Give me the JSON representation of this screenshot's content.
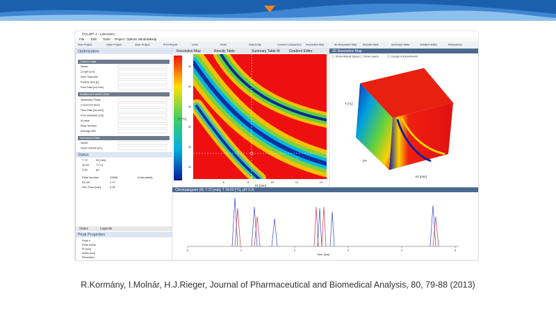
{
  "slide": {
    "citation": "R.Kormány, I.Molnár, H.J.Rieger, Journal of Pharmaceutical and Biomedical Analysis, 80, 79-88 (2013)"
  },
  "window": {
    "title": "DryLab® 4 - Laboratory",
    "menu": [
      "File",
      "Edit",
      "Tools",
      "Project",
      "Options",
      "Windows",
      "Help"
    ],
    "toolbar": [
      "New Project",
      "Open Project",
      "Save Project",
      "Print Report",
      "Undo",
      "Redo",
      "Data Entry",
      "Column Comparison",
      "Resolution Map",
      "3D Resolution Map",
      "Results Table",
      "Summary Table",
      "Gradient Editor",
      "Robustness"
    ]
  },
  "optimization": {
    "title": "Optimization",
    "sections": [
      "Column Data",
      "Additional Column Data",
      "Instrument Data"
    ],
    "column_fields": [
      "Name:",
      "Length [cm]",
      "Inner Diameter",
      "Particle Size [µ]",
      "Flow Rate [mL/min]"
    ],
    "additional_fields": [
      "Stationary Phase",
      "Column ID [mm]",
      "Flow Rate [mL/min]",
      "Pore Diameter [nm]",
      "A-value",
      "Plate Number",
      "Average MW"
    ],
    "instrument_fields": [
      "Name:",
      "Dwell Volume [mL]"
    ]
  },
  "status": {
    "title": "Status",
    "conditions": [
      [
        "7.72",
        "tG [min]"
      ],
      [
        "18.53",
        "T [°C]"
      ],
      [
        "3.30",
        "pH"
      ]
    ],
    "rows": [
      [
        "Plate Number",
        "15838",
        "(Calculated)"
      ],
      [
        "Rs crit",
        "2.17"
      ],
      [
        "Run Time [min]",
        "3.30"
      ]
    ]
  },
  "bottom_tabs": [
    "Status",
    "Legends"
  ],
  "peak_properties": {
    "title": "Peak Properties",
    "fields": [
      "Peak #",
      "Peak Name",
      "tR [min]",
      "Width [min]",
      "Resolution"
    ]
  },
  "tabs": [
    "Resolution Map",
    "Results Table",
    "Summary Table W",
    "Gradient Editor"
  ],
  "resolution_map": {
    "y_label": "T [°C]",
    "x_label": "tG [min]",
    "y_ticks": [
      45,
      40,
      35,
      30,
      25,
      20
    ],
    "x_ticks": [
      6,
      8,
      10,
      12,
      14
    ]
  },
  "map_3d": {
    "title": "3D Resolution Map",
    "options": [
      "Show Robust Space",
      "Show Layers",
      "Design of Experiments"
    ],
    "t_label": "T [°C]",
    "ph_label": "pH",
    "tg_label": "tG [min]"
  },
  "chromatogram": {
    "title": "Chromatogram (tG 7.72 [min], T 18.53 [°C], pH 3.3)",
    "x_label": "Time [min]",
    "x_ticks": [
      0,
      1,
      2,
      3,
      4,
      5
    ]
  }
}
